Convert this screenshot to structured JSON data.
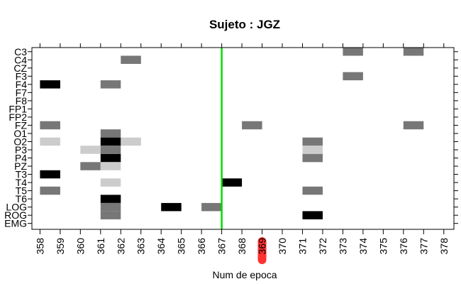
{
  "chart_data": {
    "type": "heatmap",
    "title": "Sujeto : JGZ",
    "xlabel": "Num de epoca",
    "ylabel": "",
    "x_ticks": [
      "358",
      "359",
      "360",
      "361",
      "362",
      "363",
      "364",
      "365",
      "366",
      "367",
      "368",
      "369",
      "370",
      "371",
      "372",
      "373",
      "374",
      "375",
      "376",
      "377",
      "378"
    ],
    "x_tick_values": [
      358,
      359,
      360,
      361,
      362,
      363,
      364,
      365,
      366,
      367,
      368,
      369,
      370,
      371,
      372,
      373,
      374,
      375,
      376,
      377,
      378
    ],
    "xlim": [
      357.6,
      378.5
    ],
    "highlighted_tick": "369",
    "highlight_color": "#ff0000",
    "y_labels": [
      "C3",
      "C4",
      "CZ",
      "F3",
      "F4",
      "F7",
      "F8",
      "FP1",
      "FP2",
      "FZ",
      "O1",
      "O2",
      "P3",
      "P4",
      "PZ",
      "T3",
      "T4",
      "T5",
      "T6",
      "LOG",
      "ROG",
      "EMG"
    ],
    "marker_line": {
      "x": 367,
      "color": "#00dd00"
    },
    "cell_colors": {
      "black": "#000000",
      "dark": "#777777",
      "light": "#cccccc"
    },
    "cells": [
      {
        "channel": "C3",
        "x": 373,
        "shade": "dark"
      },
      {
        "channel": "C3",
        "x": 376,
        "shade": "dark"
      },
      {
        "channel": "C4",
        "x": 362,
        "shade": "dark"
      },
      {
        "channel": "F3",
        "x": 373,
        "shade": "dark"
      },
      {
        "channel": "F4",
        "x": 358,
        "shade": "black"
      },
      {
        "channel": "F4",
        "x": 361,
        "shade": "dark"
      },
      {
        "channel": "FZ",
        "x": 358,
        "shade": "dark"
      },
      {
        "channel": "FZ",
        "x": 368,
        "shade": "dark"
      },
      {
        "channel": "FZ",
        "x": 376,
        "shade": "dark"
      },
      {
        "channel": "O1",
        "x": 361,
        "shade": "dark"
      },
      {
        "channel": "O2",
        "x": 358,
        "shade": "light"
      },
      {
        "channel": "O2",
        "x": 361,
        "shade": "black"
      },
      {
        "channel": "O2",
        "x": 362,
        "shade": "light"
      },
      {
        "channel": "O2",
        "x": 371,
        "shade": "dark"
      },
      {
        "channel": "P3",
        "x": 360,
        "shade": "light"
      },
      {
        "channel": "P3",
        "x": 361,
        "shade": "dark"
      },
      {
        "channel": "P3",
        "x": 371,
        "shade": "light"
      },
      {
        "channel": "P4",
        "x": 361,
        "shade": "black"
      },
      {
        "channel": "P4",
        "x": 371,
        "shade": "dark"
      },
      {
        "channel": "PZ",
        "x": 360,
        "shade": "dark"
      },
      {
        "channel": "PZ",
        "x": 361,
        "shade": "light"
      },
      {
        "channel": "T3",
        "x": 358,
        "shade": "black"
      },
      {
        "channel": "T4",
        "x": 361,
        "shade": "light"
      },
      {
        "channel": "T4",
        "x": 367,
        "shade": "black"
      },
      {
        "channel": "T5",
        "x": 358,
        "shade": "dark"
      },
      {
        "channel": "T5",
        "x": 371,
        "shade": "dark"
      },
      {
        "channel": "T6",
        "x": 361,
        "shade": "black"
      },
      {
        "channel": "LOG",
        "x": 361,
        "shade": "dark"
      },
      {
        "channel": "LOG",
        "x": 364,
        "shade": "black"
      },
      {
        "channel": "LOG",
        "x": 366,
        "shade": "dark"
      },
      {
        "channel": "ROG",
        "x": 361,
        "shade": "dark"
      },
      {
        "channel": "ROG",
        "x": 371,
        "shade": "black"
      }
    ]
  }
}
